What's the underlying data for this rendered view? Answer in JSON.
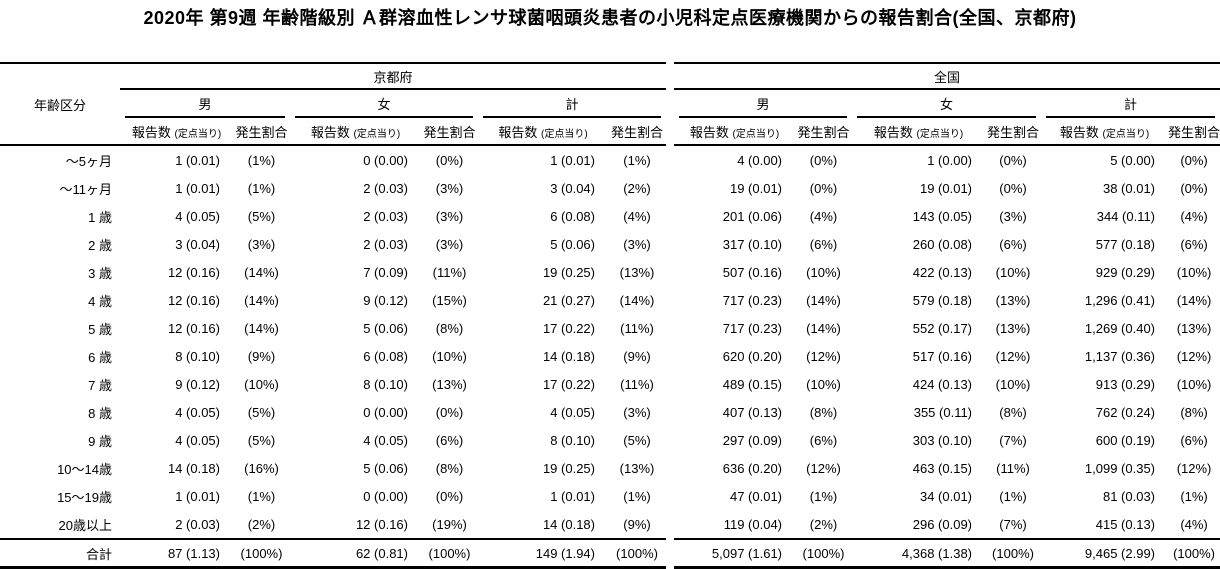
{
  "title": "2020年 第9週 年齢階級別 Ａ群溶血性レンサ球菌咽頭炎患者の小児科定点医療機関からの報告割合(全国、京都府)",
  "header": {
    "age_label": "年齢区分",
    "regions": [
      "京都府",
      "全国"
    ],
    "sexes": [
      "男",
      "女",
      "計"
    ],
    "count_label": "報告数",
    "count_sub_label": "(定点当り)",
    "rate_label": "発生割合"
  },
  "rows": [
    {
      "age": "〜5ヶ月",
      "cells": [
        "1 (0.01)",
        "(1%)",
        "0 (0.00)",
        "(0%)",
        "1 (0.01)",
        "(1%)",
        "4 (0.00)",
        "(0%)",
        "1 (0.00)",
        "(0%)",
        "5 (0.00)",
        "(0%)"
      ]
    },
    {
      "age": "〜11ヶ月",
      "cells": [
        "1 (0.01)",
        "(1%)",
        "2 (0.03)",
        "(3%)",
        "3 (0.04)",
        "(2%)",
        "19 (0.01)",
        "(0%)",
        "19 (0.01)",
        "(0%)",
        "38 (0.01)",
        "(0%)"
      ]
    },
    {
      "age": "1 歳",
      "cells": [
        "4 (0.05)",
        "(5%)",
        "2 (0.03)",
        "(3%)",
        "6 (0.08)",
        "(4%)",
        "201 (0.06)",
        "(4%)",
        "143 (0.05)",
        "(3%)",
        "344 (0.11)",
        "(4%)"
      ]
    },
    {
      "age": "2 歳",
      "cells": [
        "3 (0.04)",
        "(3%)",
        "2 (0.03)",
        "(3%)",
        "5 (0.06)",
        "(3%)",
        "317 (0.10)",
        "(6%)",
        "260 (0.08)",
        "(6%)",
        "577 (0.18)",
        "(6%)"
      ]
    },
    {
      "age": "3 歳",
      "cells": [
        "12 (0.16)",
        "(14%)",
        "7 (0.09)",
        "(11%)",
        "19 (0.25)",
        "(13%)",
        "507 (0.16)",
        "(10%)",
        "422 (0.13)",
        "(10%)",
        "929 (0.29)",
        "(10%)"
      ]
    },
    {
      "age": "4 歳",
      "cells": [
        "12 (0.16)",
        "(14%)",
        "9 (0.12)",
        "(15%)",
        "21 (0.27)",
        "(14%)",
        "717 (0.23)",
        "(14%)",
        "579 (0.18)",
        "(13%)",
        "1,296 (0.41)",
        "(14%)"
      ]
    },
    {
      "age": "5 歳",
      "cells": [
        "12 (0.16)",
        "(14%)",
        "5 (0.06)",
        "(8%)",
        "17 (0.22)",
        "(11%)",
        "717 (0.23)",
        "(14%)",
        "552 (0.17)",
        "(13%)",
        "1,269 (0.40)",
        "(13%)"
      ]
    },
    {
      "age": "6 歳",
      "cells": [
        "8 (0.10)",
        "(9%)",
        "6 (0.08)",
        "(10%)",
        "14 (0.18)",
        "(9%)",
        "620 (0.20)",
        "(12%)",
        "517 (0.16)",
        "(12%)",
        "1,137 (0.36)",
        "(12%)"
      ]
    },
    {
      "age": "7 歳",
      "cells": [
        "9 (0.12)",
        "(10%)",
        "8 (0.10)",
        "(13%)",
        "17 (0.22)",
        "(11%)",
        "489 (0.15)",
        "(10%)",
        "424 (0.13)",
        "(10%)",
        "913 (0.29)",
        "(10%)"
      ]
    },
    {
      "age": "8 歳",
      "cells": [
        "4 (0.05)",
        "(5%)",
        "0 (0.00)",
        "(0%)",
        "4 (0.05)",
        "(3%)",
        "407 (0.13)",
        "(8%)",
        "355 (0.11)",
        "(8%)",
        "762 (0.24)",
        "(8%)"
      ]
    },
    {
      "age": "9 歳",
      "cells": [
        "4 (0.05)",
        "(5%)",
        "4 (0.05)",
        "(6%)",
        "8 (0.10)",
        "(5%)",
        "297 (0.09)",
        "(6%)",
        "303 (0.10)",
        "(7%)",
        "600 (0.19)",
        "(6%)"
      ]
    },
    {
      "age": "10〜14歳",
      "cells": [
        "14 (0.18)",
        "(16%)",
        "5 (0.06)",
        "(8%)",
        "19 (0.25)",
        "(13%)",
        "636 (0.20)",
        "(12%)",
        "463 (0.15)",
        "(11%)",
        "1,099 (0.35)",
        "(12%)"
      ]
    },
    {
      "age": "15〜19歳",
      "cells": [
        "1 (0.01)",
        "(1%)",
        "0 (0.00)",
        "(0%)",
        "1 (0.01)",
        "(1%)",
        "47 (0.01)",
        "(1%)",
        "34 (0.01)",
        "(1%)",
        "81 (0.03)",
        "(1%)"
      ]
    },
    {
      "age": "20歳以上",
      "cells": [
        "2 (0.03)",
        "(2%)",
        "12 (0.16)",
        "(19%)",
        "14 (0.18)",
        "(9%)",
        "119 (0.04)",
        "(2%)",
        "296 (0.09)",
        "(7%)",
        "415 (0.13)",
        "(4%)"
      ]
    },
    {
      "age": "合計",
      "is_total": true,
      "cells": [
        "87 (1.13)",
        "(100%)",
        "62 (0.81)",
        "(100%)",
        "149 (1.94)",
        "(100%)",
        "5,097 (1.61)",
        "(100%)",
        "4,368 (1.38)",
        "(100%)",
        "9,465 (2.99)",
        "(100%)"
      ]
    }
  ],
  "chart_data": {
    "type": "table",
    "title": "2020年 第9週 年齢階級別 Ａ群溶血性レンサ球菌咽頭炎患者の小児科定点医療機関からの報告割合(全国、京都府)",
    "row_header": "年齢区分",
    "column_groups": [
      "京都府",
      "全国"
    ],
    "subgroups": [
      "男",
      "女",
      "計"
    ],
    "measures": [
      "報告数",
      "定点当り",
      "発生割合(%)"
    ],
    "categories": [
      "〜5ヶ月",
      "〜11ヶ月",
      "1 歳",
      "2 歳",
      "3 歳",
      "4 歳",
      "5 歳",
      "6 歳",
      "7 歳",
      "8 歳",
      "9 歳",
      "10〜14歳",
      "15〜19歳",
      "20歳以上",
      "合計"
    ],
    "series": [
      {
        "name": "京都府 男",
        "counts": [
          1,
          1,
          4,
          3,
          12,
          12,
          12,
          8,
          9,
          4,
          4,
          14,
          1,
          2,
          87
        ],
        "per_sentinel": [
          0.01,
          0.01,
          0.05,
          0.04,
          0.16,
          0.16,
          0.16,
          0.1,
          0.12,
          0.05,
          0.05,
          0.18,
          0.01,
          0.03,
          1.13
        ],
        "rate_percent": [
          1,
          1,
          5,
          3,
          14,
          14,
          14,
          9,
          10,
          5,
          5,
          16,
          1,
          2,
          100
        ]
      },
      {
        "name": "京都府 女",
        "counts": [
          0,
          2,
          2,
          2,
          7,
          9,
          5,
          6,
          8,
          0,
          4,
          5,
          0,
          12,
          62
        ],
        "per_sentinel": [
          0.0,
          0.03,
          0.03,
          0.03,
          0.09,
          0.12,
          0.06,
          0.08,
          0.1,
          0.0,
          0.05,
          0.06,
          0.0,
          0.16,
          0.81
        ],
        "rate_percent": [
          0,
          3,
          3,
          3,
          11,
          15,
          8,
          10,
          13,
          0,
          6,
          8,
          0,
          19,
          100
        ]
      },
      {
        "name": "京都府 計",
        "counts": [
          1,
          3,
          6,
          5,
          19,
          21,
          17,
          14,
          17,
          4,
          8,
          19,
          1,
          14,
          149
        ],
        "per_sentinel": [
          0.01,
          0.04,
          0.08,
          0.06,
          0.25,
          0.27,
          0.22,
          0.18,
          0.22,
          0.05,
          0.1,
          0.25,
          0.01,
          0.18,
          1.94
        ],
        "rate_percent": [
          1,
          2,
          4,
          3,
          13,
          14,
          11,
          9,
          11,
          3,
          5,
          13,
          1,
          9,
          100
        ]
      },
      {
        "name": "全国 男",
        "counts": [
          4,
          19,
          201,
          317,
          507,
          717,
          717,
          620,
          489,
          407,
          297,
          636,
          47,
          119,
          5097
        ],
        "per_sentinel": [
          0.0,
          0.01,
          0.06,
          0.1,
          0.16,
          0.23,
          0.23,
          0.2,
          0.15,
          0.13,
          0.09,
          0.2,
          0.01,
          0.04,
          1.61
        ],
        "rate_percent": [
          0,
          0,
          4,
          6,
          10,
          14,
          14,
          12,
          10,
          8,
          6,
          12,
          1,
          2,
          100
        ]
      },
      {
        "name": "全国 女",
        "counts": [
          1,
          19,
          143,
          260,
          422,
          579,
          552,
          517,
          424,
          355,
          303,
          463,
          34,
          296,
          4368
        ],
        "per_sentinel": [
          0.0,
          0.01,
          0.05,
          0.08,
          0.13,
          0.18,
          0.17,
          0.16,
          0.13,
          0.11,
          0.1,
          0.15,
          0.01,
          0.09,
          1.38
        ],
        "rate_percent": [
          0,
          0,
          3,
          6,
          10,
          13,
          13,
          12,
          10,
          8,
          7,
          11,
          1,
          7,
          100
        ]
      },
      {
        "name": "全国 計",
        "counts": [
          5,
          38,
          344,
          577,
          929,
          1296,
          1269,
          1137,
          913,
          762,
          600,
          1099,
          81,
          415,
          9465
        ],
        "per_sentinel": [
          0.0,
          0.01,
          0.11,
          0.18,
          0.29,
          0.41,
          0.4,
          0.36,
          0.29,
          0.24,
          0.19,
          0.35,
          0.03,
          0.13,
          2.99
        ],
        "rate_percent": [
          0,
          0,
          4,
          6,
          10,
          14,
          13,
          12,
          10,
          8,
          6,
          12,
          1,
          4,
          100
        ]
      }
    ]
  }
}
